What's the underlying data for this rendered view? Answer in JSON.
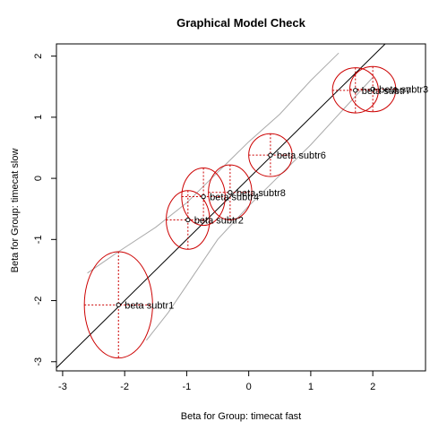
{
  "chart_data": {
    "type": "scatter",
    "title": "Graphical Model Check",
    "xlabel": "Beta for Group: timecat fast",
    "ylabel": "Beta for Group: timecat slow",
    "xlim": [
      -3.1,
      2.85
    ],
    "ylim": [
      -3.15,
      2.2
    ],
    "xticks": [
      -3,
      -2,
      -1,
      0,
      1,
      2
    ],
    "yticks": [
      -3,
      -2,
      -1,
      0,
      1,
      2
    ],
    "grid": false,
    "identity_line": true,
    "colors": {
      "ellipse": "#cc0000",
      "band": "#aaaaaa",
      "line": "#000000",
      "point": "#000000"
    },
    "points": [
      {
        "label": "beta subtr1",
        "x": -2.1,
        "y": -2.07,
        "rx": 0.55,
        "ry": 0.87
      },
      {
        "label": "beta subtr2",
        "x": -0.98,
        "y": -0.68,
        "rx": 0.35,
        "ry": 0.48
      },
      {
        "label": "beta subtr4",
        "x": -0.73,
        "y": -0.3,
        "rx": 0.35,
        "ry": 0.47
      },
      {
        "label": "beta subtr8",
        "x": -0.3,
        "y": -0.23,
        "rx": 0.35,
        "ry": 0.45
      },
      {
        "label": "beta subtr6",
        "x": 0.35,
        "y": 0.38,
        "rx": 0.35,
        "ry": 0.35
      },
      {
        "label": "beta subtr7",
        "x": 1.72,
        "y": 1.44,
        "rx": 0.37,
        "ry": 0.37
      },
      {
        "label": "beta subtr3",
        "x": 2.0,
        "y": 1.46,
        "rx": 0.37,
        "ry": 0.37
      }
    ],
    "band_upper": [
      [
        -2.6,
        -1.55
      ],
      [
        -2.1,
        -1.2
      ],
      [
        -1.5,
        -0.8
      ],
      [
        -1.0,
        -0.4
      ],
      [
        -0.5,
        0.1
      ],
      [
        0.0,
        0.6
      ],
      [
        0.5,
        1.05
      ],
      [
        1.0,
        1.6
      ],
      [
        1.45,
        2.05
      ]
    ],
    "band_lower": [
      [
        -1.65,
        -2.65
      ],
      [
        -1.3,
        -2.2
      ],
      [
        -0.9,
        -1.6
      ],
      [
        -0.5,
        -1.0
      ],
      [
        0.0,
        -0.45
      ],
      [
        0.5,
        0.05
      ],
      [
        1.0,
        0.55
      ],
      [
        1.5,
        1.1
      ],
      [
        2.0,
        1.65
      ]
    ]
  }
}
